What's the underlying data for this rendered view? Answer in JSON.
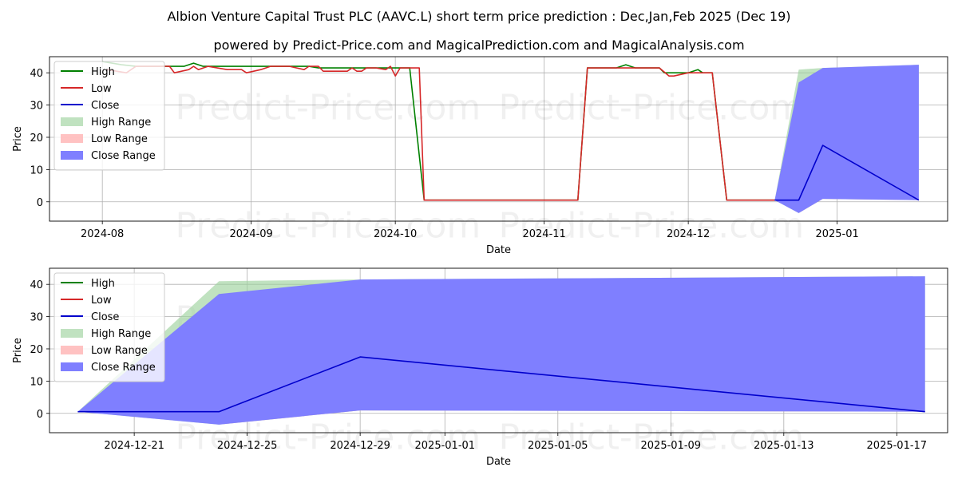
{
  "title": "Albion Venture Capital Trust PLC (AAVC.L) short term price prediction : Dec,Jan,Feb 2025 (Dec 19)",
  "subtitle": "powered by Predict-Price.com and MagicalPrediction.com and MagicalAnalysis.com",
  "watermark": "Predict-Price.com",
  "colors": {
    "high": "#008000",
    "low": "#d62728",
    "close": "#0000cc",
    "high_range": "#9ed39e",
    "low_range": "#ffb3b3",
    "close_range": "#7f7fff",
    "grid": "#b0b0b0"
  },
  "chart_data": [
    {
      "type": "line",
      "xlabel": "Date",
      "ylabel": "Price",
      "x_is_date": true,
      "xlim": [
        "2024-07-21",
        "2025-01-24"
      ],
      "ylim": [
        -6,
        45
      ],
      "yticks": [
        0,
        10,
        20,
        30,
        40
      ],
      "xticks": [
        {
          "date": "2024-08-01",
          "label": "2024-08"
        },
        {
          "date": "2024-09-01",
          "label": "2024-09"
        },
        {
          "date": "2024-10-01",
          "label": "2024-10"
        },
        {
          "date": "2024-11-01",
          "label": "2024-11"
        },
        {
          "date": "2024-12-01",
          "label": "2024-12"
        },
        {
          "date": "2025-01-01",
          "label": "2025-01"
        }
      ],
      "legend": {
        "position": "top-left",
        "entries": [
          "High",
          "Low",
          "Close",
          "High Range",
          "Low Range",
          "Close Range"
        ]
      },
      "series": [
        {
          "name": "High",
          "points": [
            [
              "2024-08-01",
              43.5
            ],
            [
              "2024-08-05",
              42.5
            ],
            [
              "2024-08-08",
              42
            ],
            [
              "2024-08-12",
              42
            ],
            [
              "2024-08-16",
              42
            ],
            [
              "2024-08-18",
              42
            ],
            [
              "2024-08-20",
              43
            ],
            [
              "2024-08-22",
              42
            ],
            [
              "2024-08-26",
              42
            ],
            [
              "2024-08-30",
              42
            ],
            [
              "2024-09-03",
              42
            ],
            [
              "2024-09-08",
              42
            ],
            [
              "2024-09-13",
              42
            ],
            [
              "2024-09-15",
              41.5
            ],
            [
              "2024-09-20",
              41.5
            ],
            [
              "2024-09-25",
              41.5
            ],
            [
              "2024-09-30",
              41.5
            ],
            [
              "2024-10-04",
              41.5
            ],
            [
              "2024-10-07",
              0.5
            ],
            [
              "2024-10-20",
              0.5
            ],
            [
              "2024-11-08",
              0.5
            ],
            [
              "2024-11-10",
              41.5
            ],
            [
              "2024-11-16",
              41.5
            ],
            [
              "2024-11-18",
              42.5
            ],
            [
              "2024-11-20",
              41.5
            ],
            [
              "2024-11-25",
              41.5
            ],
            [
              "2024-11-26",
              40
            ],
            [
              "2024-12-01",
              40
            ],
            [
              "2024-12-03",
              41
            ],
            [
              "2024-12-04",
              40
            ],
            [
              "2024-12-06",
              40
            ],
            [
              "2024-12-09",
              0.5
            ],
            [
              "2024-12-19",
              0.5
            ]
          ]
        },
        {
          "name": "Low",
          "points": [
            [
              "2024-08-02",
              41
            ],
            [
              "2024-08-06",
              40
            ],
            [
              "2024-08-08",
              42
            ],
            [
              "2024-08-12",
              42
            ],
            [
              "2024-08-15",
              42
            ],
            [
              "2024-08-16",
              40
            ],
            [
              "2024-08-19",
              41
            ],
            [
              "2024-08-20",
              42
            ],
            [
              "2024-08-21",
              41
            ],
            [
              "2024-08-23",
              42
            ],
            [
              "2024-08-27",
              41
            ],
            [
              "2024-08-30",
              41
            ],
            [
              "2024-08-31",
              40
            ],
            [
              "2024-09-03",
              41
            ],
            [
              "2024-09-05",
              42
            ],
            [
              "2024-09-09",
              42
            ],
            [
              "2024-09-12",
              41
            ],
            [
              "2024-09-13",
              42
            ],
            [
              "2024-09-15",
              42
            ],
            [
              "2024-09-16",
              40.5
            ],
            [
              "2024-09-19",
              40.5
            ],
            [
              "2024-09-21",
              40.5
            ],
            [
              "2024-09-22",
              41.5
            ],
            [
              "2024-09-23",
              40.5
            ],
            [
              "2024-09-24",
              40.5
            ],
            [
              "2024-09-25",
              41.5
            ],
            [
              "2024-09-27",
              41.5
            ],
            [
              "2024-09-29",
              41
            ],
            [
              "2024-09-30",
              42
            ],
            [
              "2024-10-01",
              39
            ],
            [
              "2024-10-02",
              41.5
            ],
            [
              "2024-10-06",
              41.5
            ],
            [
              "2024-10-07",
              0.5
            ],
            [
              "2024-10-20",
              0.5
            ],
            [
              "2024-11-08",
              0.5
            ],
            [
              "2024-11-10",
              41.5
            ],
            [
              "2024-11-22",
              41.5
            ],
            [
              "2024-11-25",
              41.5
            ],
            [
              "2024-11-27",
              39
            ],
            [
              "2024-11-28",
              39
            ],
            [
              "2024-12-01",
              40
            ],
            [
              "2024-12-04",
              40
            ],
            [
              "2024-12-06",
              40
            ],
            [
              "2024-12-09",
              0.5
            ],
            [
              "2024-12-19",
              0.5
            ]
          ]
        },
        {
          "name": "Close",
          "points": [
            [
              "2024-12-19",
              0.5
            ],
            [
              "2024-12-24",
              0.5
            ],
            [
              "2024-12-29",
              17.5
            ],
            [
              "2025-01-18",
              0.5
            ]
          ]
        }
      ],
      "ranges": [
        {
          "name": "High Range",
          "x": [
            "2024-12-19",
            "2024-12-24",
            "2024-12-29",
            "2025-01-18"
          ],
          "lower": [
            0.5,
            -3.5,
            0.9,
            0.5
          ],
          "upper": [
            0.5,
            41,
            41.5,
            42.5
          ]
        },
        {
          "name": "Low Range",
          "x": [
            "2024-12-19",
            "2024-12-24",
            "2024-12-29",
            "2025-01-18"
          ],
          "lower": [
            0.5,
            -3.5,
            0.9,
            0.5
          ],
          "upper": [
            0.5,
            -3.5,
            2,
            0.8
          ]
        },
        {
          "name": "Close Range",
          "x": [
            "2024-12-19",
            "2024-12-24",
            "2024-12-29",
            "2025-01-18"
          ],
          "lower": [
            0.5,
            -3.5,
            0.9,
            0.5
          ],
          "upper": [
            0.5,
            37,
            41.5,
            42.5
          ]
        }
      ]
    },
    {
      "type": "line",
      "xlabel": "Date",
      "ylabel": "Price",
      "x_is_date": true,
      "xlim": [
        "2024-12-18",
        "2025-01-18.8"
      ],
      "ylim": [
        -6,
        45
      ],
      "yticks": [
        0,
        10,
        20,
        30,
        40
      ],
      "xticks": [
        {
          "date": "2024-12-21",
          "label": "2024-12-21"
        },
        {
          "date": "2024-12-25",
          "label": "2024-12-25"
        },
        {
          "date": "2024-12-29",
          "label": "2024-12-29"
        },
        {
          "date": "2025-01-01",
          "label": "2025-01-01"
        },
        {
          "date": "2025-01-05",
          "label": "2025-01-05"
        },
        {
          "date": "2025-01-09",
          "label": "2025-01-09"
        },
        {
          "date": "2025-01-13",
          "label": "2025-01-13"
        },
        {
          "date": "2025-01-17",
          "label": "2025-01-17"
        }
      ],
      "legend": {
        "position": "top-left",
        "entries": [
          "High",
          "Low",
          "Close",
          "High Range",
          "Low Range",
          "Close Range"
        ]
      },
      "series": [
        {
          "name": "Close",
          "points": [
            [
              "2024-12-19",
              0.5
            ],
            [
              "2024-12-24",
              0.5
            ],
            [
              "2024-12-29",
              17.5
            ],
            [
              "2025-01-18",
              0.5
            ]
          ]
        }
      ],
      "ranges": [
        {
          "name": "High Range",
          "x": [
            "2024-12-19",
            "2024-12-24",
            "2024-12-29",
            "2025-01-18"
          ],
          "lower": [
            0.5,
            -3.5,
            0.9,
            0.5
          ],
          "upper": [
            0.5,
            41,
            41.5,
            42.5
          ]
        },
        {
          "name": "Low Range",
          "x": [
            "2024-12-19",
            "2024-12-24",
            "2024-12-29",
            "2025-01-18"
          ],
          "lower": [
            0.5,
            -3.5,
            0.9,
            0.5
          ],
          "upper": [
            0.5,
            -3.5,
            2,
            0.8
          ]
        },
        {
          "name": "Close Range",
          "x": [
            "2024-12-19",
            "2024-12-24",
            "2024-12-29",
            "2025-01-18"
          ],
          "lower": [
            0.5,
            -3.5,
            0.9,
            0.5
          ],
          "upper": [
            0.5,
            37,
            41.5,
            42.5
          ]
        }
      ]
    }
  ]
}
